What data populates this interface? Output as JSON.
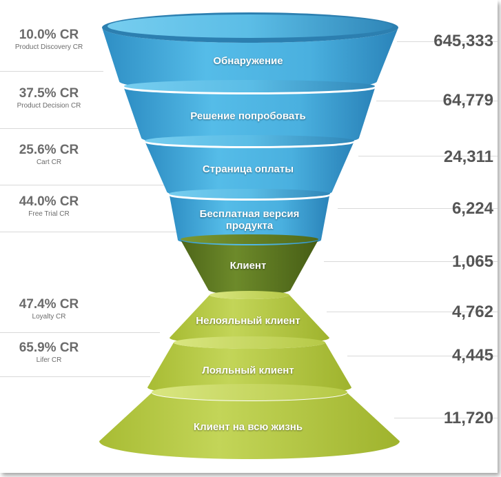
{
  "chart_data": {
    "type": "funnel",
    "stages": [
      {
        "label": "Обнаружение",
        "value": "645,333",
        "color": "blue"
      },
      {
        "label": "Решение попробовать",
        "value": "64,779",
        "color": "blue"
      },
      {
        "label": "Страница оплаты",
        "value": "24,311",
        "color": "blue"
      },
      {
        "label": "Бесплатная версия продукта",
        "value": "6,224",
        "color": "blue"
      },
      {
        "label": "Клиент",
        "value": "1,065",
        "color": "darkgreen"
      },
      {
        "label": "Нелояльный клиент",
        "value": "4,762",
        "color": "lime"
      },
      {
        "label": "Лояльный клиент",
        "value": "4,445",
        "color": "lime"
      },
      {
        "label": "Клиент на всю жизнь",
        "value": "11,720",
        "color": "lime"
      }
    ],
    "conversion_rates": [
      {
        "value": "10.0% CR",
        "name": "Product Discovery CR"
      },
      {
        "value": "37.5% CR",
        "name": "Product Decision CR"
      },
      {
        "value": "25.6% CR",
        "name": "Cart CR"
      },
      {
        "value": "44.0% CR",
        "name": "Free Trial CR"
      },
      {
        "value": "47.4% CR",
        "name": "Loyalty CR"
      },
      {
        "value": "65.9% CR",
        "name": "Lifer CR"
      }
    ]
  },
  "colors": {
    "blue": "#4ab0df",
    "darkgreen": "#5f7a22",
    "lime": "#b9cb45",
    "text_grey": "#6b6b6b",
    "line_grey": "#d9d9d9"
  }
}
